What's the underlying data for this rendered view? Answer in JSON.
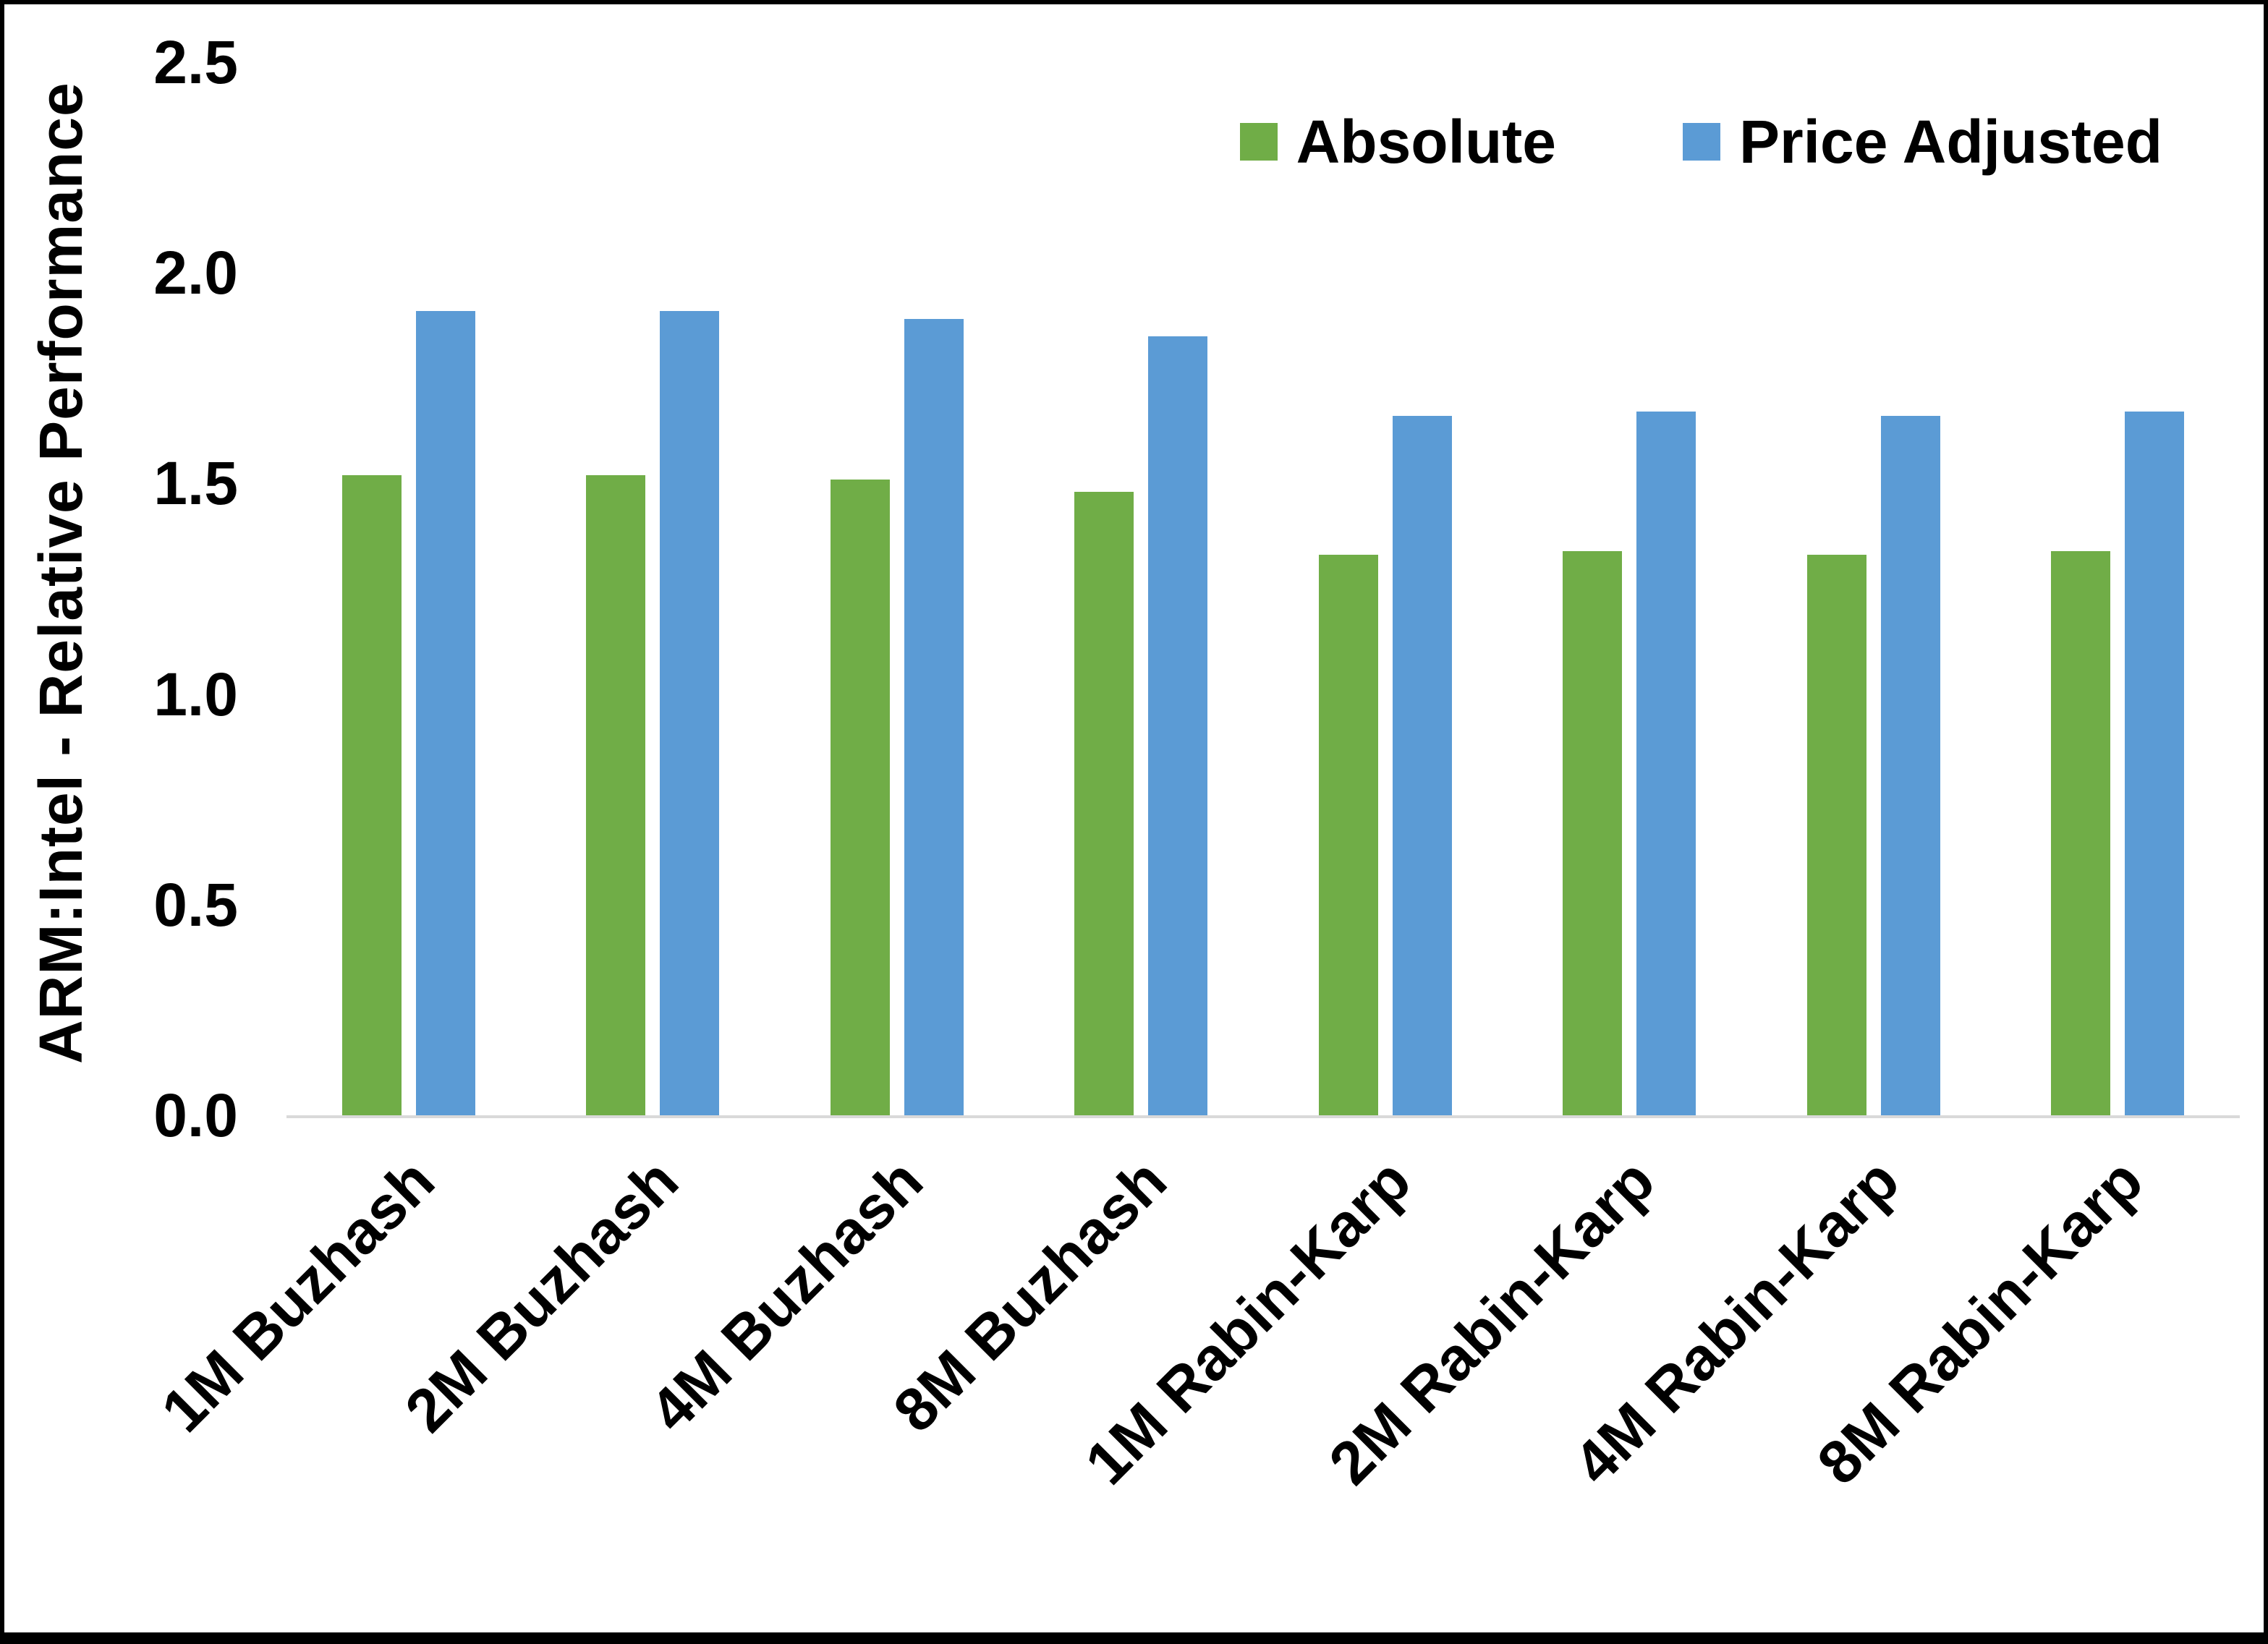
{
  "chart_data": {
    "type": "bar",
    "title": "",
    "xlabel": "",
    "ylabel": "ARM:Intel - Relative Performance",
    "ylim": [
      0,
      2.5
    ],
    "ytick_step": 0.5,
    "ytick_decimals": 1,
    "grid": false,
    "legend_position": "top-right",
    "categories": [
      "1M Buzhash",
      "2M Buzhash",
      "4M Buzhash",
      "8M Buzhash",
      "1M Rabin-Karp",
      "2M Rabin-Karp",
      "4M Rabin-Karp",
      "8M Rabin-Karp"
    ],
    "series": [
      {
        "name": "Absolute",
        "color": "#70AD47",
        "values": [
          1.52,
          1.52,
          1.51,
          1.48,
          1.33,
          1.34,
          1.33,
          1.34
        ]
      },
      {
        "name": "Price Adjusted",
        "color": "#5B9BD5",
        "values": [
          1.91,
          1.91,
          1.89,
          1.85,
          1.66,
          1.67,
          1.66,
          1.67
        ]
      }
    ],
    "colors": {
      "axis_line": "#d9d9d9",
      "text": "#000000",
      "background": "#ffffff"
    }
  }
}
